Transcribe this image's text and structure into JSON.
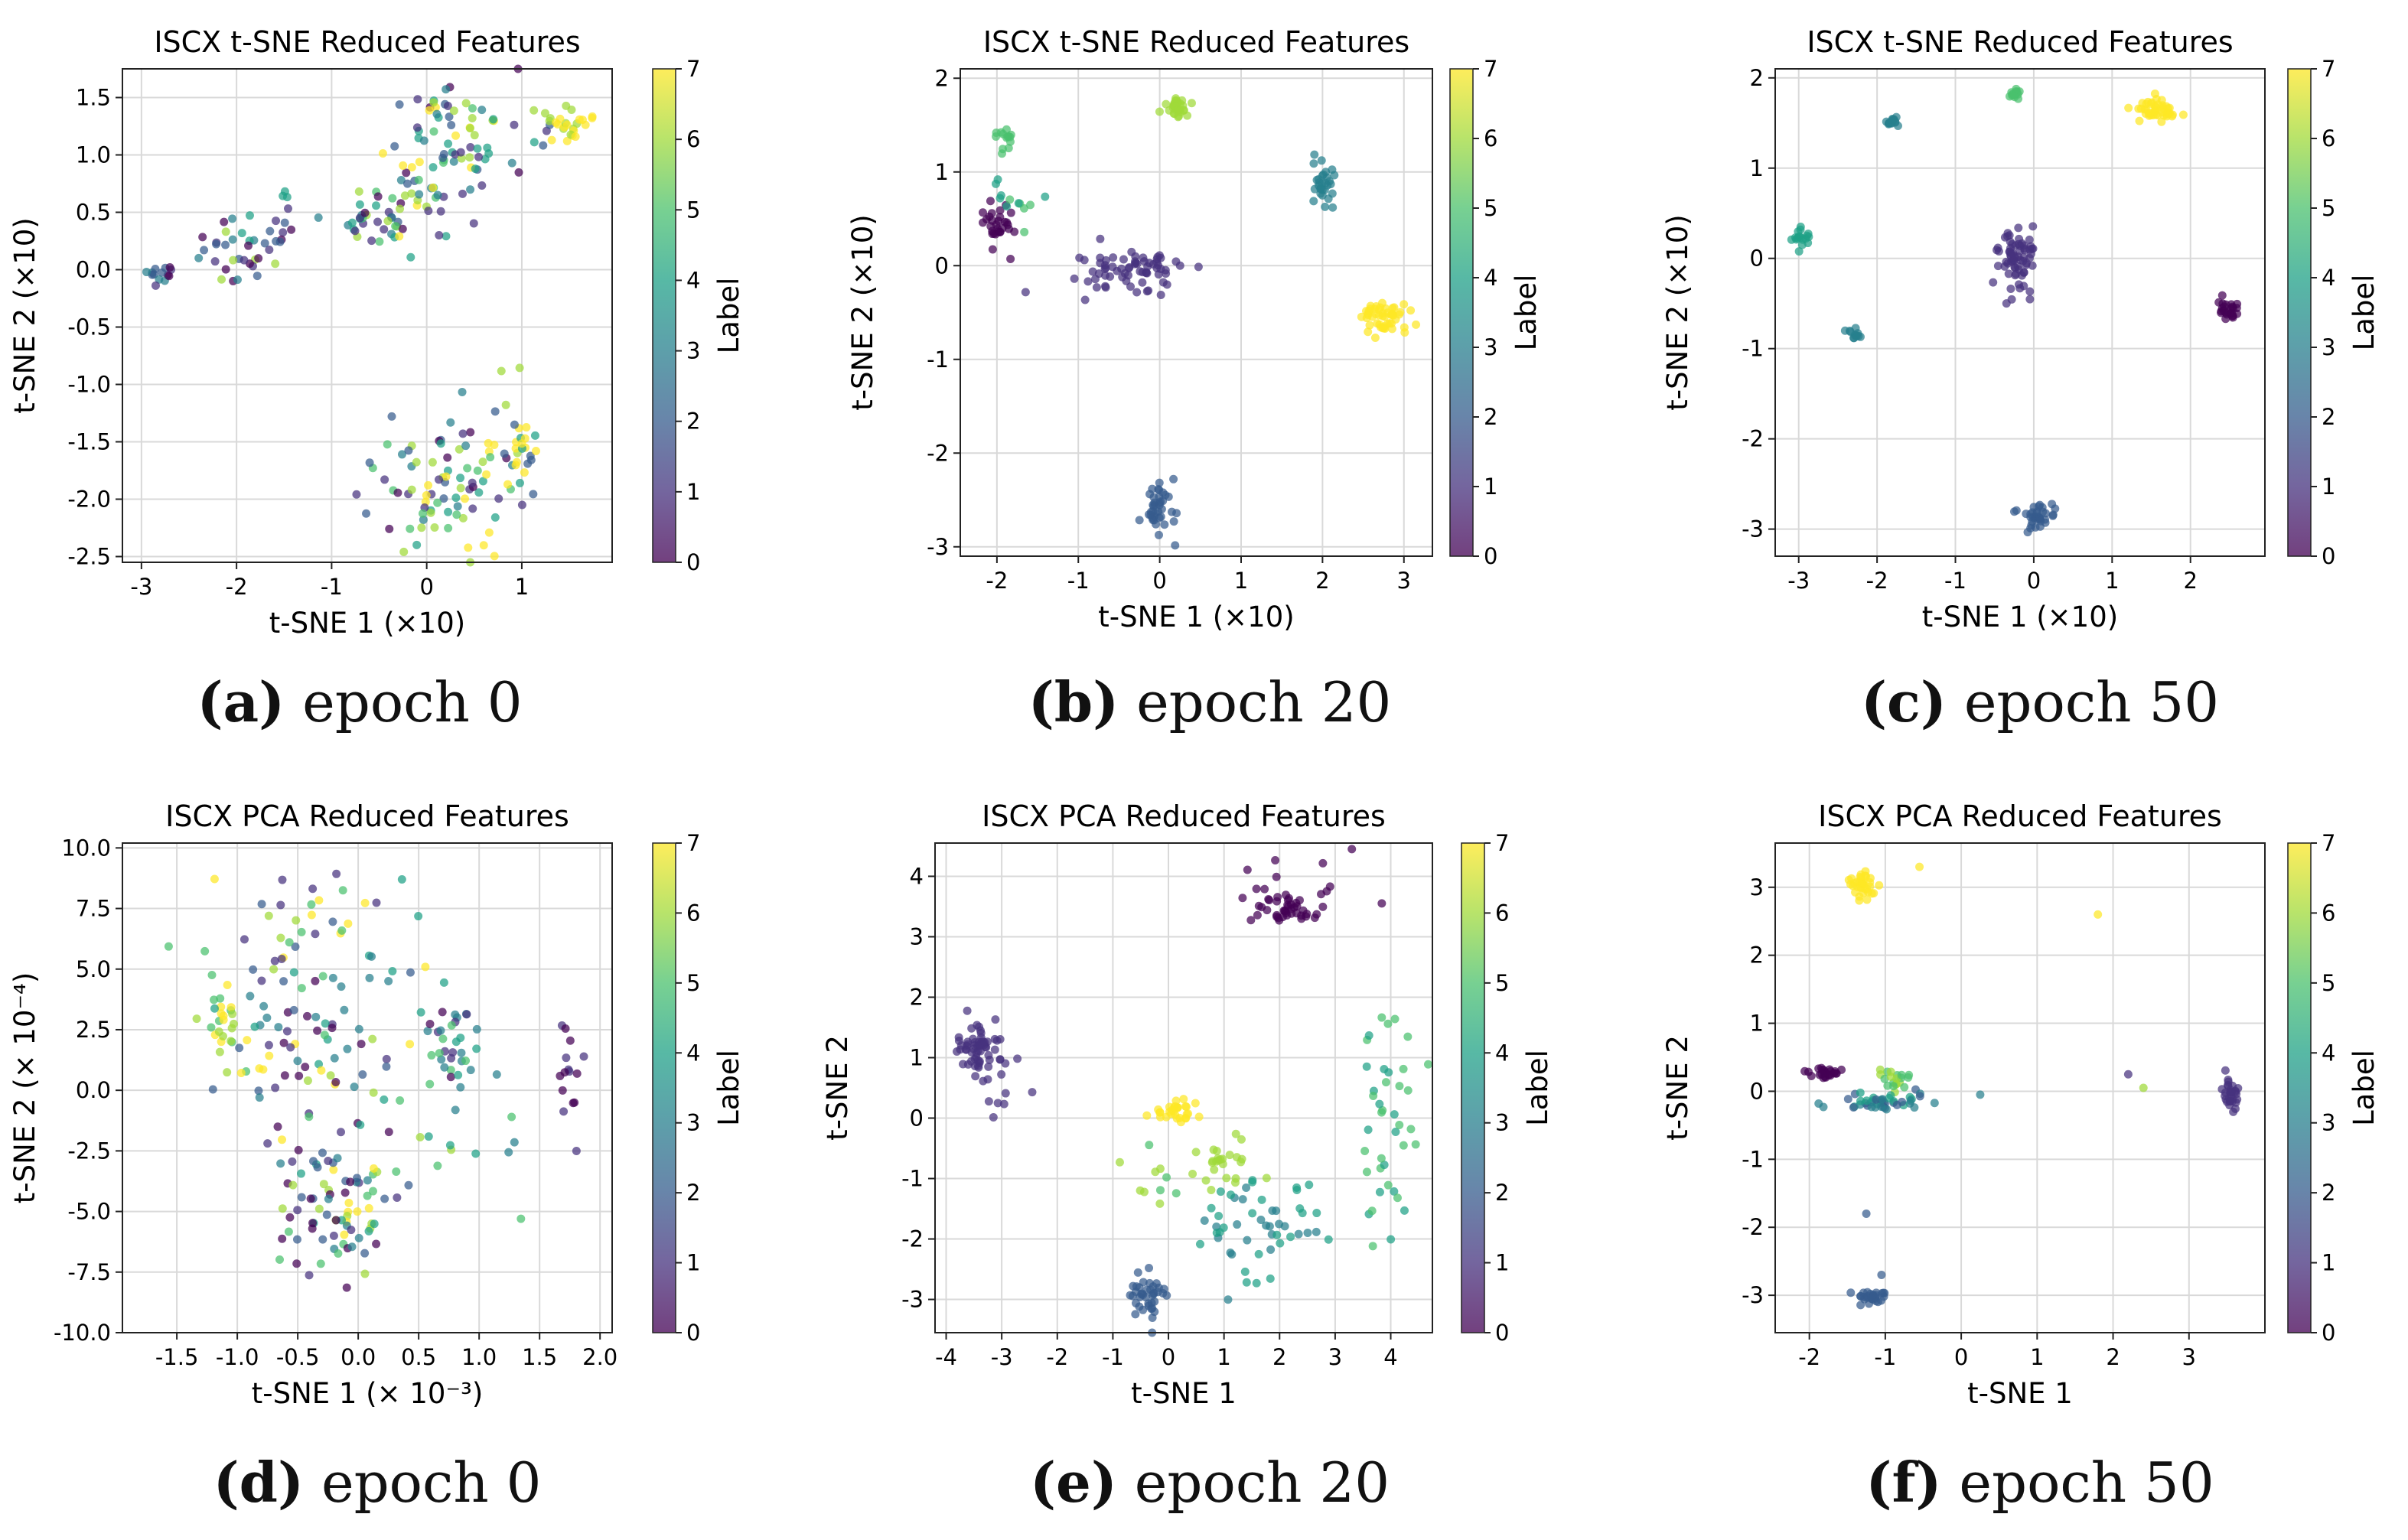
{
  "figure": {
    "colormap": [
      "#440154",
      "#46327e",
      "#365c8d",
      "#277f8e",
      "#1fa187",
      "#4ac16d",
      "#a0da39",
      "#fde725"
    ]
  },
  "chart_data": [
    {
      "id": "a",
      "type": "scatter",
      "title": "ISCX t-SNE Reduced Features",
      "xlabel": "t-SNE 1 (×10)",
      "ylabel": "t-SNE 2 (×10)",
      "xlim": [
        -3.2,
        1.95
      ],
      "ylim": [
        -2.55,
        1.75
      ],
      "xticks": [
        -3,
        -2,
        -1,
        0,
        1
      ],
      "xtick_labels": [
        "-3",
        "-2",
        "-1",
        "0",
        "1"
      ],
      "yticks": [
        -2.5,
        -2.0,
        -1.5,
        -1.0,
        -0.5,
        0.0,
        0.5,
        1.0,
        1.5
      ],
      "ytick_labels": [
        "-2.5",
        "-2.0",
        "-1.5",
        "-1.0",
        "-0.5",
        "0.0",
        "0.5",
        "1.0",
        "1.5"
      ],
      "colorbar": {
        "label": "Label",
        "range": [
          0,
          7
        ],
        "ticks": [
          "0",
          "1",
          "2",
          "3",
          "4",
          "5",
          "6",
          "7"
        ]
      },
      "caption": {
        "letter": "(a)",
        "text": "epoch 0"
      },
      "clusters": [
        {
          "cx": -2.8,
          "cy": -0.03,
          "sx": 0.08,
          "sy": 0.04,
          "n": 14,
          "labels": [
            3,
            2,
            1,
            0
          ]
        },
        {
          "cx": -2.05,
          "cy": 0.18,
          "sx": 0.22,
          "sy": 0.14,
          "n": 30,
          "labels": [
            4,
            1,
            2,
            6,
            0,
            3
          ]
        },
        {
          "cx": -1.55,
          "cy": 0.35,
          "sx": 0.15,
          "sy": 0.08,
          "n": 10,
          "labels": [
            0,
            1,
            2
          ]
        },
        {
          "cx": -1.5,
          "cy": 0.65,
          "sx": 0.05,
          "sy": 0.03,
          "n": 3,
          "labels": [
            4
          ]
        },
        {
          "cx": -0.6,
          "cy": 0.45,
          "sx": 0.3,
          "sy": 0.14,
          "n": 40,
          "labels": [
            0,
            1,
            2,
            3,
            4,
            5,
            6
          ]
        },
        {
          "cx": 0.15,
          "cy": 1.1,
          "sx": 0.3,
          "sy": 0.3,
          "n": 50,
          "labels": [
            0,
            1,
            2,
            3,
            4,
            5,
            6,
            7
          ]
        },
        {
          "cx": 0.2,
          "cy": 0.65,
          "sx": 0.25,
          "sy": 0.2,
          "n": 20,
          "labels": [
            1,
            2,
            3,
            6,
            7
          ]
        },
        {
          "cx": 0.9,
          "cy": 1.15,
          "sx": 0.35,
          "sy": 0.15,
          "n": 20,
          "labels": [
            1,
            2,
            4,
            6
          ]
        },
        {
          "cx": 1.45,
          "cy": 1.25,
          "sx": 0.15,
          "sy": 0.08,
          "n": 24,
          "labels": [
            7,
            7,
            7,
            6
          ]
        },
        {
          "cx": 0.2,
          "cy": -1.9,
          "sx": 0.45,
          "sy": 0.3,
          "n": 80,
          "labels": [
            0,
            1,
            2,
            3,
            4,
            5,
            6,
            7
          ]
        },
        {
          "cx": 0.95,
          "cy": -1.5,
          "sx": 0.15,
          "sy": 0.25,
          "n": 30,
          "labels": [
            7,
            7,
            6,
            2,
            4
          ]
        }
      ]
    },
    {
      "id": "b",
      "type": "scatter",
      "title": "ISCX t-SNE Reduced Features",
      "xlabel": "t-SNE 1 (×10)",
      "ylabel": "t-SNE 2 (×10)",
      "xlim": [
        -2.45,
        3.35
      ],
      "ylim": [
        -3.1,
        2.1
      ],
      "xticks": [
        -2,
        -1,
        0,
        1,
        2,
        3
      ],
      "xtick_labels": [
        "-2",
        "-1",
        "0",
        "1",
        "2",
        "3"
      ],
      "yticks": [
        -3,
        -2,
        -1,
        0,
        1,
        2
      ],
      "ytick_labels": [
        "-3",
        "-2",
        "-1",
        "0",
        "1",
        "2"
      ],
      "colorbar": {
        "label": "Label",
        "range": [
          0,
          7
        ],
        "ticks": [
          "0",
          "1",
          "2",
          "3",
          "4",
          "5",
          "6",
          "7"
        ]
      },
      "caption": {
        "letter": "(b)",
        "text": "epoch 20"
      },
      "clusters": [
        {
          "cx": -2.0,
          "cy": 0.4,
          "sx": 0.1,
          "sy": 0.12,
          "n": 30,
          "labels": [
            0
          ]
        },
        {
          "cx": -1.9,
          "cy": 1.35,
          "sx": 0.06,
          "sy": 0.08,
          "n": 14,
          "labels": [
            5
          ]
        },
        {
          "cx": -1.7,
          "cy": 0.6,
          "sx": 0.1,
          "sy": 0.1,
          "n": 8,
          "labels": [
            4,
            5
          ]
        },
        {
          "cx": -2.0,
          "cy": 0.95,
          "sx": 0.03,
          "sy": 0.1,
          "n": 4,
          "labels": [
            4
          ]
        },
        {
          "cx": -0.35,
          "cy": -0.05,
          "sx": 0.4,
          "sy": 0.12,
          "n": 70,
          "labels": [
            1
          ]
        },
        {
          "cx": 0.2,
          "cy": 1.7,
          "sx": 0.06,
          "sy": 0.06,
          "n": 30,
          "labels": [
            6
          ]
        },
        {
          "cx": 2.0,
          "cy": 0.9,
          "sx": 0.08,
          "sy": 0.15,
          "n": 30,
          "labels": [
            3
          ]
        },
        {
          "cx": 2.75,
          "cy": -0.55,
          "sx": 0.18,
          "sy": 0.1,
          "n": 50,
          "labels": [
            7
          ]
        },
        {
          "cx": 0.0,
          "cy": -2.6,
          "sx": 0.1,
          "sy": 0.18,
          "n": 40,
          "labels": [
            2
          ]
        }
      ]
    },
    {
      "id": "c",
      "type": "scatter",
      "title": "ISCX t-SNE Reduced Features",
      "xlabel": "t-SNE 1 (×10)",
      "ylabel": "t-SNE 2 (×10)",
      "xlim": [
        -3.3,
        2.95
      ],
      "ylim": [
        -3.3,
        2.1
      ],
      "xticks": [
        -3,
        -2,
        -1,
        0,
        1,
        2
      ],
      "xtick_labels": [
        "-3",
        "-2",
        "-1",
        "0",
        "1",
        "2"
      ],
      "yticks": [
        -3,
        -2,
        -1,
        0,
        1,
        2
      ],
      "ytick_labels": [
        "-3",
        "-2",
        "-1",
        "0",
        "1",
        "2"
      ],
      "colorbar": {
        "label": "Label",
        "range": [
          0,
          7
        ],
        "ticks": [
          "0",
          "1",
          "2",
          "3",
          "4",
          "5",
          "6",
          "7"
        ]
      },
      "caption": {
        "letter": "(c)",
        "text": "epoch 50"
      },
      "clusters": [
        {
          "cx": -2.95,
          "cy": 0.22,
          "sx": 0.06,
          "sy": 0.05,
          "n": 18,
          "labels": [
            4
          ]
        },
        {
          "cx": -1.8,
          "cy": 1.52,
          "sx": 0.04,
          "sy": 0.03,
          "n": 16,
          "labels": [
            3
          ]
        },
        {
          "cx": -0.25,
          "cy": 1.83,
          "sx": 0.04,
          "sy": 0.03,
          "n": 14,
          "labels": [
            5
          ]
        },
        {
          "cx": 1.6,
          "cy": 1.65,
          "sx": 0.15,
          "sy": 0.07,
          "n": 45,
          "labels": [
            7
          ]
        },
        {
          "cx": -2.3,
          "cy": -0.85,
          "sx": 0.05,
          "sy": 0.05,
          "n": 12,
          "labels": [
            3
          ]
        },
        {
          "cx": -0.2,
          "cy": 0.0,
          "sx": 0.15,
          "sy": 0.18,
          "n": 70,
          "labels": [
            1
          ]
        },
        {
          "cx": 2.5,
          "cy": -0.55,
          "sx": 0.08,
          "sy": 0.08,
          "n": 25,
          "labels": [
            0
          ]
        },
        {
          "cx": 0.05,
          "cy": -2.85,
          "sx": 0.12,
          "sy": 0.06,
          "n": 35,
          "labels": [
            2
          ]
        }
      ]
    },
    {
      "id": "d",
      "type": "scatter",
      "title": "ISCX PCA Reduced Features",
      "xlabel": "t-SNE 1 (× 10⁻³)",
      "ylabel": "t-SNE 2 (× 10⁻⁴)",
      "xlim": [
        -1.95,
        2.1
      ],
      "ylim": [
        -10.0,
        10.2
      ],
      "xticks": [
        -1.5,
        -1.0,
        -0.5,
        0.0,
        0.5,
        1.0,
        1.5,
        2.0
      ],
      "xtick_labels": [
        "-1.5",
        "-1.0",
        "-0.5",
        "0.0",
        "0.5",
        "1.0",
        "1.5",
        "2.0"
      ],
      "yticks": [
        -10,
        -7.5,
        -5,
        -2.5,
        0,
        2.5,
        5,
        7.5,
        10
      ],
      "ytick_labels": [
        "-10.0",
        "-7.5",
        "-5.0",
        "-2.5",
        "0.0",
        "2.5",
        "5.0",
        "7.5",
        "10.0"
      ],
      "colorbar": {
        "label": "Label",
        "range": [
          0,
          7
        ],
        "ticks": [
          "0",
          "1",
          "2",
          "3",
          "4",
          "5",
          "6",
          "7"
        ]
      },
      "caption": {
        "letter": "(d)",
        "text": "epoch 0"
      },
      "clusters": [
        {
          "cx": -1.1,
          "cy": 2.8,
          "sx": 0.06,
          "sy": 0.9,
          "n": 22,
          "labels": [
            7,
            6,
            7,
            5
          ]
        },
        {
          "cx": -0.3,
          "cy": 2.8,
          "sx": 0.45,
          "sy": 2.2,
          "n": 100,
          "labels": [
            0,
            1,
            2,
            3,
            4,
            5,
            6,
            7
          ]
        },
        {
          "cx": 0.75,
          "cy": 2.0,
          "sx": 0.15,
          "sy": 1.2,
          "n": 30,
          "labels": [
            0,
            1,
            3,
            4,
            5
          ]
        },
        {
          "cx": -0.15,
          "cy": -5.0,
          "sx": 0.25,
          "sy": 1.4,
          "n": 80,
          "labels": [
            0,
            1,
            2,
            3,
            4,
            5,
            6,
            7
          ]
        },
        {
          "cx": -0.3,
          "cy": 7.5,
          "sx": 0.4,
          "sy": 1.0,
          "n": 20,
          "labels": [
            1,
            2,
            4,
            5,
            7
          ]
        },
        {
          "cx": 1.75,
          "cy": 1.0,
          "sx": 0.07,
          "sy": 1.5,
          "n": 15,
          "labels": [
            0,
            1
          ]
        },
        {
          "cx": 0.9,
          "cy": -2.0,
          "sx": 0.5,
          "sy": 2.0,
          "n": 12,
          "labels": [
            4,
            5,
            6,
            3
          ]
        }
      ]
    },
    {
      "id": "e",
      "type": "scatter",
      "title": "ISCX PCA Reduced Features",
      "xlabel": "t-SNE 1",
      "ylabel": "t-SNE 2",
      "xlim": [
        -4.2,
        4.75
      ],
      "ylim": [
        -3.55,
        4.55
      ],
      "xticks": [
        -4,
        -3,
        -2,
        -1,
        0,
        1,
        2,
        3,
        4
      ],
      "xtick_labels": [
        "-4",
        "-3",
        "-2",
        "-1",
        "0",
        "1",
        "2",
        "3",
        "4"
      ],
      "yticks": [
        -3,
        -2,
        -1,
        0,
        1,
        2,
        3,
        4
      ],
      "ytick_labels": [
        "-3",
        "-2",
        "-1",
        "0",
        "1",
        "2",
        "3",
        "4"
      ],
      "colorbar": {
        "label": "Label",
        "range": [
          0,
          7
        ],
        "ticks": [
          "0",
          "1",
          "2",
          "3",
          "4",
          "5",
          "6",
          "7"
        ]
      },
      "caption": {
        "letter": "(e)",
        "text": "epoch 20"
      },
      "clusters": [
        {
          "cx": -3.4,
          "cy": 1.2,
          "sx": 0.2,
          "sy": 0.2,
          "n": 60,
          "labels": [
            1
          ]
        },
        {
          "cx": -3.0,
          "cy": 0.7,
          "sx": 0.4,
          "sy": 0.3,
          "n": 10,
          "labels": [
            1
          ]
        },
        {
          "cx": 2.1,
          "cy": 3.45,
          "sx": 0.3,
          "sy": 0.12,
          "n": 40,
          "labels": [
            0
          ]
        },
        {
          "cx": 2.4,
          "cy": 3.9,
          "sx": 0.8,
          "sy": 0.25,
          "n": 12,
          "labels": [
            0
          ]
        },
        {
          "cx": 0.1,
          "cy": 0.1,
          "sx": 0.18,
          "sy": 0.12,
          "n": 30,
          "labels": [
            7
          ]
        },
        {
          "cx": 1.0,
          "cy": -0.7,
          "sx": 0.4,
          "sy": 0.25,
          "n": 25,
          "labels": [
            6
          ]
        },
        {
          "cx": -0.5,
          "cy": -1.0,
          "sx": 0.3,
          "sy": 0.5,
          "n": 10,
          "labels": [
            5,
            6
          ]
        },
        {
          "cx": 1.6,
          "cy": -1.8,
          "sx": 0.6,
          "sy": 0.45,
          "n": 50,
          "labels": [
            3,
            4
          ]
        },
        {
          "cx": -0.3,
          "cy": -2.9,
          "sx": 0.18,
          "sy": 0.2,
          "n": 40,
          "labels": [
            2
          ]
        },
        {
          "cx": 4.0,
          "cy": 0.0,
          "sx": 0.25,
          "sy": 0.9,
          "n": 40,
          "labels": [
            4,
            5
          ]
        }
      ]
    },
    {
      "id": "f",
      "type": "scatter",
      "title": "ISCX PCA Reduced Features",
      "xlabel": "t-SNE 1",
      "ylabel": "t-SNE 2",
      "xlim": [
        -2.45,
        4.0
      ],
      "ylim": [
        -3.55,
        3.65
      ],
      "xticks": [
        -2,
        -1,
        0,
        1,
        2,
        3
      ],
      "xtick_labels": [
        "-2",
        "-1",
        "0",
        "1",
        "2",
        "3"
      ],
      "yticks": [
        -3,
        -2,
        -1,
        0,
        1,
        2,
        3
      ],
      "ytick_labels": [
        "-3",
        "-2",
        "-1",
        "0",
        "1",
        "2",
        "3"
      ],
      "colorbar": {
        "label": "Label",
        "range": [
          0,
          7
        ],
        "ticks": [
          "0",
          "1",
          "2",
          "3",
          "4",
          "5",
          "6",
          "7"
        ]
      },
      "caption": {
        "letter": "(f)",
        "text": "epoch 50"
      },
      "clusters": [
        {
          "cx": -1.3,
          "cy": 3.05,
          "sx": 0.08,
          "sy": 0.1,
          "n": 35,
          "labels": [
            7
          ]
        },
        {
          "cx": -1.8,
          "cy": 0.25,
          "sx": 0.12,
          "sy": 0.05,
          "n": 25,
          "labels": [
            0
          ]
        },
        {
          "cx": -0.85,
          "cy": 0.2,
          "sx": 0.1,
          "sy": 0.1,
          "n": 20,
          "labels": [
            6,
            5
          ]
        },
        {
          "cx": -1.0,
          "cy": -0.15,
          "sx": 0.3,
          "sy": 0.07,
          "n": 45,
          "labels": [
            3,
            4,
            2
          ]
        },
        {
          "cx": -1.2,
          "cy": -3.05,
          "sx": 0.1,
          "sy": 0.05,
          "n": 30,
          "labels": [
            2
          ]
        },
        {
          "cx": 3.55,
          "cy": -0.05,
          "sx": 0.05,
          "sy": 0.12,
          "n": 30,
          "labels": [
            1
          ]
        }
      ],
      "points": [
        {
          "x": -0.55,
          "y": 3.3,
          "label": 7
        },
        {
          "x": 1.8,
          "y": 2.6,
          "label": 7
        },
        {
          "x": 2.2,
          "y": 0.25,
          "label": 1
        },
        {
          "x": 2.4,
          "y": 0.05,
          "label": 6
        },
        {
          "x": 0.25,
          "y": -0.05,
          "label": 3
        },
        {
          "x": -1.25,
          "y": -1.8,
          "label": 2
        },
        {
          "x": -1.05,
          "y": -2.7,
          "label": 2
        }
      ]
    }
  ]
}
